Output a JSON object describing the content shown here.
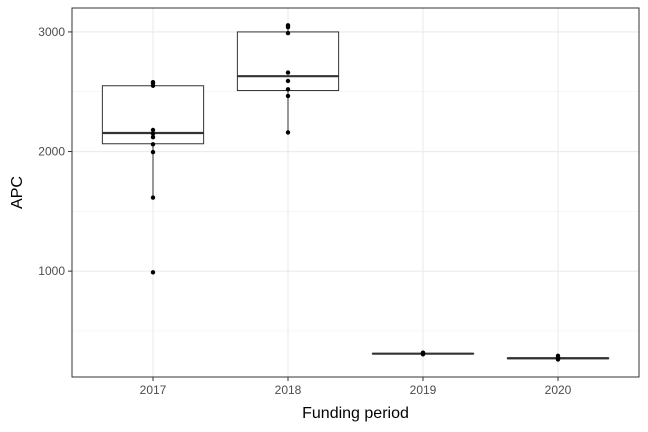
{
  "chart_data": {
    "type": "box",
    "title": "",
    "xlabel": "Funding period",
    "ylabel": "APC",
    "categories": [
      "2017",
      "2018",
      "2019",
      "2020"
    ],
    "ylim": [
      115,
      3200
    ],
    "y_ticks": [
      1000,
      2000,
      3000
    ],
    "grid": true,
    "boxes": [
      {
        "category": "2017",
        "min": 1615,
        "q1": 2065,
        "median": 2155,
        "q3": 2550,
        "max": 2580
      },
      {
        "category": "2018",
        "min": 2160,
        "q1": 2510,
        "median": 2630,
        "q3": 3000,
        "max": 3055
      },
      {
        "category": "2019",
        "min": 305,
        "q1": 308,
        "median": 310,
        "q3": 312,
        "max": 318
      },
      {
        "category": "2020",
        "min": 262,
        "q1": 268,
        "median": 272,
        "q3": 275,
        "max": 292
      }
    ],
    "points": [
      {
        "category": "2017",
        "values": [
          990,
          1615,
          1995,
          2060,
          2120,
          2150,
          2180,
          2550,
          2570,
          2580
        ]
      },
      {
        "category": "2018",
        "values": [
          2160,
          2465,
          2520,
          2590,
          2660,
          2990,
          3040,
          3055
        ]
      },
      {
        "category": "2019",
        "values": [
          305,
          310,
          315,
          318
        ]
      },
      {
        "category": "2020",
        "values": [
          262,
          270,
          275,
          292
        ]
      }
    ],
    "colors": {
      "panel_border": "#333333",
      "grid_major": "#ebebeb",
      "grid_minor": "#f2f2f2",
      "box_line": "#333333",
      "point": "#000000"
    }
  }
}
